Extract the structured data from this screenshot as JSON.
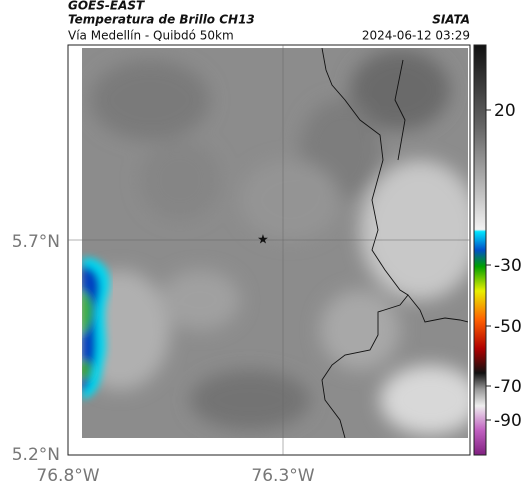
{
  "header": {
    "title": "GOES-EAST",
    "subtitle": "Temperatura de Brillo CH13",
    "region": "Vía Medellín - Quibdó 50km",
    "source": "SIATA",
    "timestamp": "2024-06-12 03:29"
  },
  "map": {
    "lat_labels": [
      "5.7°N",
      "5.2°N"
    ],
    "lon_labels": [
      "76.8°W",
      "76.3°W"
    ]
  },
  "colorbar": {
    "ticks": [
      "20",
      "-30",
      "-50",
      "-70",
      "-90"
    ]
  }
}
